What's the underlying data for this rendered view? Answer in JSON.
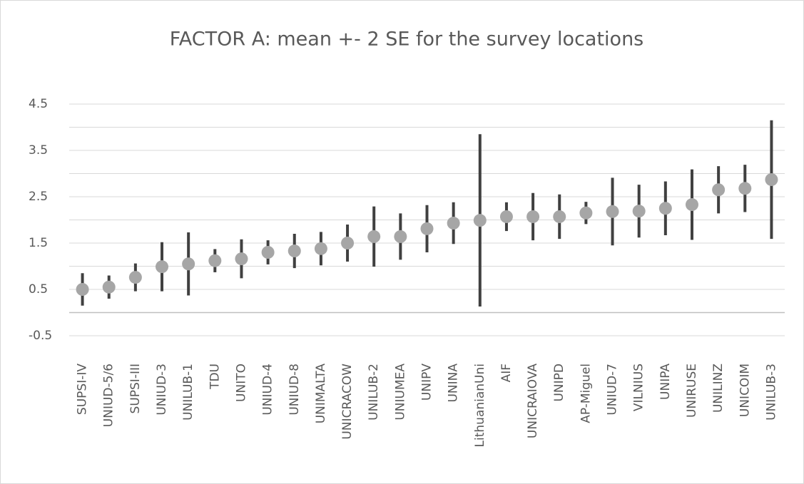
{
  "chart_data": {
    "type": "errorbar",
    "title": "FACTOR A: mean +- 2 SE for the survey locations",
    "categories": [
      "SUPSI-IV",
      "UNIUD-5/6",
      "SUPSI-III",
      "UNIUD-3",
      "UNILUB-1",
      "TDU",
      "UNITO",
      "UNIUD-4",
      "UNIUD-8",
      "UNIMALTA",
      "UNICRACOW",
      "UNILUB-2",
      "UNIUMEA",
      "UNIPV",
      "UNINA",
      "LithuanianUni",
      "AIF",
      "UNICRAIOVA",
      "UNIPD",
      "AP-Miguel",
      "UNIUD-7",
      "VILNIUS",
      "UNIPA",
      "UNIRUSE",
      "UNILINZ",
      "UNICOIM",
      "UNILUB-3"
    ],
    "values": [
      0.5,
      0.55,
      0.76,
      0.99,
      1.05,
      1.12,
      1.16,
      1.3,
      1.33,
      1.38,
      1.5,
      1.64,
      1.64,
      1.81,
      1.93,
      1.99,
      2.07,
      2.07,
      2.07,
      2.15,
      2.18,
      2.19,
      2.25,
      2.33,
      2.65,
      2.68,
      2.87
    ],
    "errors": [
      0.35,
      0.25,
      0.3,
      0.53,
      0.68,
      0.25,
      0.42,
      0.26,
      0.37,
      0.36,
      0.4,
      0.65,
      0.5,
      0.51,
      0.45,
      1.86,
      0.31,
      0.51,
      0.48,
      0.24,
      0.73,
      0.57,
      0.58,
      0.76,
      0.51,
      0.51,
      1.28
    ],
    "color": "#a6a6a6",
    "error_color": "#404040",
    "ylim": [
      -0.5,
      4.5
    ],
    "yticks": [
      -0.5,
      0.5,
      1.5,
      2.5,
      3.5,
      4.5
    ],
    "minor_yticks": [
      0,
      1,
      2,
      3,
      4
    ],
    "grid": true
  }
}
